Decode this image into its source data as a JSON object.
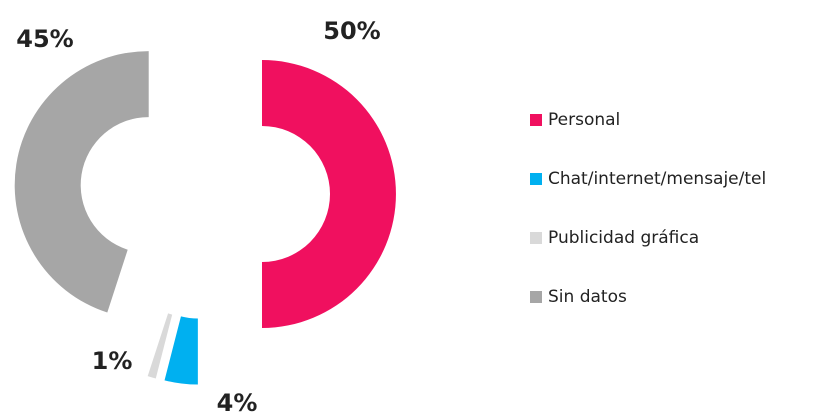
{
  "chart_data": {
    "type": "pie",
    "donut": true,
    "categories": [
      "Personal",
      "Chat/internet/mensaje/tel",
      "Publicidad gráfica",
      "Sin datos"
    ],
    "values": [
      50,
      4,
      1,
      45
    ],
    "value_labels": [
      "50%",
      "4%",
      "1%",
      "45%"
    ],
    "colors": [
      "#f0105f",
      "#00b0f0",
      "#d9d9d9",
      "#a6a6a6"
    ]
  }
}
